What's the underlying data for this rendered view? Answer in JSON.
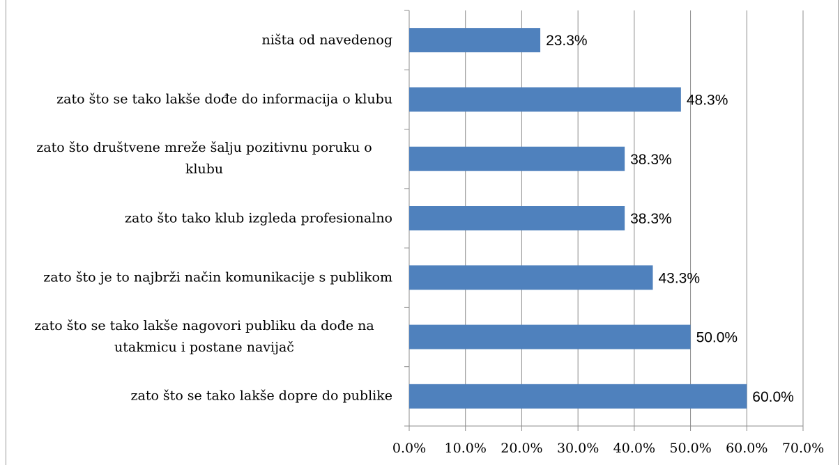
{
  "chart_data": {
    "type": "hbar",
    "categories": [
      "ništa od navedenog",
      "zato što se tako lakše dođe do informacija o klubu",
      "zato što društvene mreže šalju pozitivnu poruku o klubu",
      "zato što tako klub izgleda profesionalno",
      "zato što je to najbrži način komunikacije s publikom",
      "zato što se tako lakše nagovori publiku da dođe na utakmicu i postane navijač",
      "zato što se tako lakše dopre do publike"
    ],
    "values": [
      23.3,
      48.3,
      38.3,
      38.3,
      43.3,
      50.0,
      60.0
    ],
    "value_labels": [
      "23.3%",
      "48.3%",
      "38.3%",
      "38.3%",
      "43.3%",
      "50.0%",
      "60.0%"
    ],
    "color": "#4f81bd",
    "xlim": [
      0,
      70
    ],
    "xticks": [
      {
        "value": 0,
        "label": "0.0%"
      },
      {
        "value": 10,
        "label": "10.0%"
      },
      {
        "value": 20,
        "label": "20.0%"
      },
      {
        "value": 30,
        "label": "30.0%"
      },
      {
        "value": 40,
        "label": "40.0%"
      },
      {
        "value": 50,
        "label": "50.0%"
      },
      {
        "value": 60,
        "label": "60.0%"
      },
      {
        "value": 70,
        "label": "70.0%"
      }
    ],
    "grid": true
  }
}
